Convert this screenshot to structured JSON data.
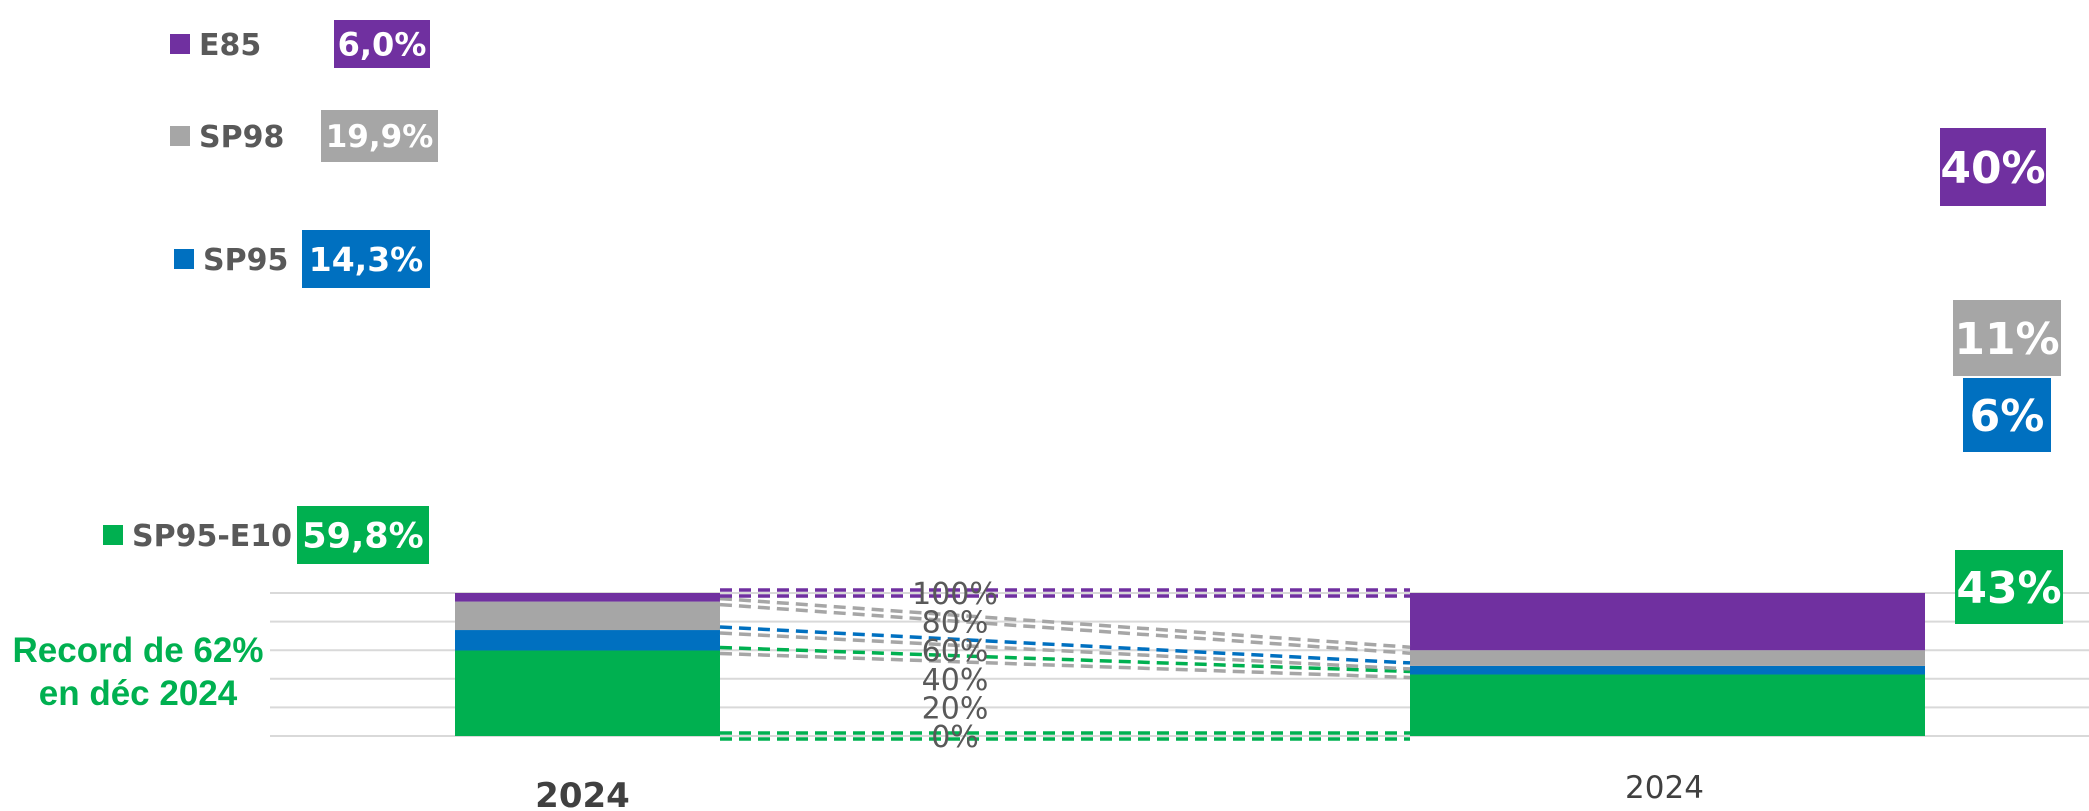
{
  "colors": {
    "E85": "#7030a0",
    "SP98": "#a6a6a6",
    "SP95": "#0070c0",
    "SP95-E10": "#00b050",
    "grid": "#d9d9d9",
    "note": "#00b050"
  },
  "chart_data": {
    "type": "bar",
    "stacked": true,
    "normalized": true,
    "categories": [
      "2024",
      "2024"
    ],
    "series": [
      {
        "name": "SP95-E10",
        "values": [
          59.8,
          43
        ],
        "labels": [
          "59,8%",
          "43%"
        ]
      },
      {
        "name": "SP95",
        "values": [
          14.3,
          6
        ],
        "labels": [
          "14,3%",
          "6%"
        ]
      },
      {
        "name": "SP98",
        "values": [
          19.9,
          11
        ],
        "labels": [
          "19,9%",
          "11%"
        ]
      },
      {
        "name": "E85",
        "values": [
          6.0,
          40
        ],
        "labels": [
          "6,0%",
          "40%"
        ]
      }
    ],
    "yticks": [
      "0%",
      "20%",
      "40%",
      "60%",
      "80%",
      "100%"
    ],
    "ylim": [
      0,
      100
    ],
    "grid": true,
    "legend_position": "left",
    "connectors": "dashed lines linking segment boundaries between the two bars",
    "annotation": {
      "line1": "Record de 62%",
      "line2": "en déc 2024"
    }
  }
}
